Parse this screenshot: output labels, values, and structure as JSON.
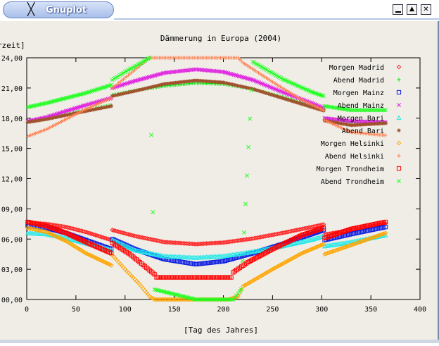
{
  "window": {
    "title": "Gnuplot",
    "app_icon": "x-logo-icon",
    "buttons": [
      "minimize-icon",
      "maximize-icon",
      "close-icon"
    ]
  },
  "chart_data": {
    "type": "scatter",
    "title": "Dämmerung in Europa (2004)",
    "xlabel": "[Tag des Jahres]",
    "ylabel": "[Uhrzeit]",
    "xlim": [
      0,
      400
    ],
    "ylim": [
      0,
      24
    ],
    "x_ticks": [
      0,
      50,
      100,
      150,
      200,
      250,
      300,
      350,
      400
    ],
    "y_ticks": [
      0,
      3,
      6,
      9,
      12,
      15,
      18,
      21,
      24
    ],
    "y_tick_labels": [
      "00,00",
      "03,00",
      "06,00",
      "09,00",
      "12,00",
      "15,00",
      "18,00",
      "21,00",
      "24,00"
    ],
    "legend_position": "top-right",
    "grid": false,
    "series": [
      {
        "name": "Morgen Madrid",
        "color": "#ff2020",
        "marker": "diamond",
        "x": [
          1,
          20,
          40,
          60,
          86,
          87,
          110,
          140,
          172,
          200,
          230,
          260,
          290,
          302,
          303,
          330,
          365
        ],
        "y": [
          7.65,
          7.5,
          7.2,
          6.7,
          5.9,
          6.9,
          6.3,
          5.7,
          5.5,
          5.65,
          6.05,
          6.6,
          7.2,
          7.45,
          6.45,
          6.9,
          7.55
        ]
      },
      {
        "name": "Abend Madrid",
        "color": "#10e010",
        "marker": "plus",
        "x": [
          1,
          20,
          40,
          60,
          86,
          87,
          110,
          140,
          172,
          200,
          230,
          260,
          290,
          302,
          303,
          330,
          365
        ],
        "y": [
          17.65,
          18.0,
          18.4,
          18.8,
          19.3,
          20.3,
          20.75,
          21.2,
          21.5,
          21.4,
          20.9,
          20.1,
          19.25,
          18.95,
          17.95,
          17.55,
          17.6
        ]
      },
      {
        "name": "Morgen Mainz",
        "color": "#1020e0",
        "marker": "square",
        "x": [
          1,
          20,
          40,
          60,
          86,
          87,
          110,
          140,
          172,
          200,
          230,
          260,
          290,
          302,
          303,
          330,
          365
        ],
        "y": [
          7.3,
          7.1,
          6.6,
          5.9,
          5.0,
          6.0,
          5.0,
          4.0,
          3.5,
          3.8,
          4.6,
          5.5,
          6.5,
          6.9,
          5.9,
          6.5,
          7.2
        ]
      },
      {
        "name": "Abend Mainz",
        "color": "#e020e0",
        "marker": "cross",
        "x": [
          1,
          20,
          40,
          60,
          86,
          87,
          110,
          140,
          172,
          200,
          230,
          260,
          290,
          302,
          303,
          330,
          365
        ],
        "y": [
          17.7,
          18.1,
          18.7,
          19.3,
          20.0,
          21.0,
          21.7,
          22.5,
          22.85,
          22.6,
          21.8,
          20.6,
          19.5,
          19.0,
          18.0,
          17.7,
          17.6
        ]
      },
      {
        "name": "Morgen Bari",
        "color": "#20e8e8",
        "marker": "triangle",
        "x": [
          1,
          20,
          40,
          60,
          86,
          87,
          110,
          140,
          172,
          200,
          230,
          260,
          290,
          302,
          303,
          330,
          365
        ],
        "y": [
          6.6,
          6.5,
          6.1,
          5.6,
          4.9,
          5.9,
          4.9,
          4.3,
          4.15,
          4.3,
          4.75,
          5.3,
          5.95,
          6.3,
          5.3,
          5.7,
          6.4
        ]
      },
      {
        "name": "Abend Bari",
        "color": "#a0522d",
        "marker": "star",
        "x": [
          1,
          20,
          40,
          60,
          86,
          87,
          110,
          140,
          172,
          200,
          230,
          260,
          290,
          302,
          303,
          330,
          365
        ],
        "y": [
          17.6,
          17.9,
          18.3,
          18.7,
          19.2,
          20.2,
          20.7,
          21.4,
          21.75,
          21.55,
          20.9,
          20.0,
          19.1,
          18.75,
          17.75,
          17.3,
          17.5
        ]
      },
      {
        "name": "Morgen Helsinki",
        "color": "#ffa500",
        "marker": "diamond",
        "x": [
          1,
          20,
          40,
          60,
          86,
          87,
          100,
          115,
          125,
          130,
          172,
          205,
          215,
          220,
          250,
          280,
          302,
          303,
          330,
          365
        ],
        "y": [
          7.1,
          6.7,
          5.8,
          4.6,
          3.4,
          4.4,
          3.0,
          1.5,
          0.3,
          0.0,
          0.0,
          0.0,
          0.3,
          1.3,
          3.0,
          4.6,
          5.5,
          4.5,
          5.4,
          6.6
        ]
      },
      {
        "name": "Abend Helsinki",
        "color": "#ff8050",
        "marker": "plus",
        "x": [
          1,
          20,
          40,
          60,
          86,
          87,
          100,
          115,
          125,
          130,
          172,
          205,
          215,
          220,
          250,
          280,
          302,
          303,
          330,
          365
        ],
        "y": [
          16.2,
          16.9,
          17.9,
          18.9,
          20.0,
          21.0,
          22.0,
          23.2,
          24.0,
          24.0,
          24.0,
          24.0,
          24.0,
          23.5,
          21.6,
          19.8,
          18.8,
          17.8,
          16.6,
          16.3
        ]
      },
      {
        "name": "Morgen Trondheim",
        "color": "#ff0000",
        "marker": "square",
        "x": [
          1,
          20,
          40,
          60,
          86,
          87,
          105,
          120,
          130,
          132,
          208,
          210,
          225,
          250,
          280,
          302,
          303,
          330,
          365
        ],
        "y": [
          7.7,
          7.3,
          6.6,
          5.7,
          4.6,
          5.6,
          4.5,
          3.3,
          2.5,
          2.2,
          2.2,
          2.7,
          3.7,
          5.0,
          6.4,
          7.1,
          6.1,
          7.0,
          7.7
        ]
      },
      {
        "name": "Abend Trondheim",
        "color": "#20ff20",
        "marker": "cross",
        "x": [
          1,
          20,
          40,
          60,
          86,
          87,
          100,
          113,
          125,
          130,
          172,
          210,
          218,
          230,
          260,
          290,
          302,
          303,
          330,
          365
        ],
        "y": [
          19.1,
          19.5,
          20.0,
          20.5,
          21.3,
          21.8,
          22.6,
          23.3,
          24.0,
          1.0,
          0.0,
          0.0,
          1.0,
          23.6,
          21.9,
          20.6,
          20.2,
          19.2,
          18.8,
          18.8
        ]
      }
    ]
  }
}
